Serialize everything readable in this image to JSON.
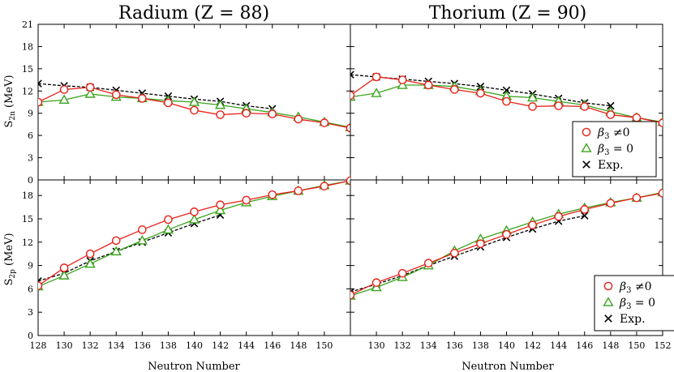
{
  "titles": {
    "radium": "Radium (Z = 88)",
    "thorium": "Thorium (Z = 90)"
  },
  "axes": {
    "xlabel": "Neutron Number",
    "ylabel_top_prefix": "S",
    "ylabel_top_sub": "2n",
    "ylabel_bottom_prefix": "S",
    "ylabel_bottom_sub": "2p",
    "ylabel_units": "(MeV)"
  },
  "legend": {
    "entries": [
      {
        "key": "beta3_nonzero",
        "symbol_main": "β",
        "symbol_sub": "3",
        "rel": "≠0",
        "marker": "circle"
      },
      {
        "key": "beta3_zero",
        "symbol_main": "β",
        "symbol_sub": "3",
        "rel": "= 0",
        "marker": "triangle"
      },
      {
        "key": "exp",
        "label": "Exp.",
        "marker": "cross"
      }
    ]
  },
  "colors": {
    "beta3_nonzero": "#e8211a",
    "beta3_zero": "#3aa41c",
    "exp": "#000000"
  },
  "chart_data": [
    {
      "id": "radium-s2n",
      "type": "line",
      "title": "Radium (Z = 88)",
      "xlabel": "",
      "ylabel": "S2n (MeV)",
      "xlim": [
        128,
        152
      ],
      "ylim": [
        0,
        21
      ],
      "x_ticks": [
        128,
        130,
        132,
        134,
        136,
        138,
        140,
        142,
        144,
        146,
        148,
        150
      ],
      "y_ticks": [
        0,
        3,
        6,
        9,
        12,
        15,
        18,
        21
      ],
      "show_x_tick_labels": false,
      "series": [
        {
          "name": "β3 ≠0",
          "key": "beta3_nonzero",
          "marker": "circle",
          "x": [
            128,
            130,
            132,
            134,
            136,
            138,
            140,
            142,
            144,
            146,
            148,
            150,
            152
          ],
          "values": [
            10.5,
            12.2,
            12.5,
            11.5,
            11.0,
            10.4,
            9.4,
            8.8,
            9.0,
            8.9,
            8.2,
            7.7,
            7.0
          ]
        },
        {
          "name": "β3 = 0",
          "key": "beta3_zero",
          "marker": "triangle",
          "x": [
            128,
            130,
            132,
            134,
            136,
            138,
            140,
            142,
            144,
            146,
            148,
            150,
            152
          ],
          "values": [
            10.5,
            10.8,
            11.6,
            11.2,
            11.0,
            10.7,
            10.5,
            10.1,
            9.6,
            9.1,
            8.5,
            7.8,
            7.1
          ]
        },
        {
          "name": "Exp.",
          "key": "exp",
          "marker": "cross",
          "x": [
            128,
            130,
            132,
            134,
            136,
            138,
            140,
            142,
            144,
            146
          ],
          "values": [
            13.0,
            12.7,
            12.5,
            12.1,
            11.7,
            11.3,
            10.9,
            10.6,
            10.0,
            9.6
          ]
        }
      ]
    },
    {
      "id": "thorium-s2n",
      "type": "line",
      "title": "Thorium (Z = 90)",
      "xlabel": "",
      "ylabel": "",
      "xlim": [
        128,
        152
      ],
      "ylim": [
        0,
        21
      ],
      "x_ticks": [
        130,
        132,
        134,
        136,
        138,
        140,
        142,
        144,
        146,
        148,
        150,
        152
      ],
      "y_ticks": [
        0,
        3,
        6,
        9,
        12,
        15,
        18,
        21
      ],
      "show_x_tick_labels": false,
      "legend": "lower-right",
      "series": [
        {
          "name": "β3 ≠0",
          "key": "beta3_nonzero",
          "marker": "circle",
          "x": [
            128,
            130,
            132,
            134,
            136,
            138,
            140,
            142,
            144,
            146,
            148,
            150,
            152
          ],
          "values": [
            11.4,
            13.9,
            13.5,
            12.8,
            12.2,
            11.7,
            10.6,
            9.9,
            10.0,
            9.9,
            8.8,
            8.4,
            7.7
          ]
        },
        {
          "name": "β3 = 0",
          "key": "beta3_zero",
          "marker": "triangle",
          "x": [
            128,
            130,
            132,
            134,
            136,
            138,
            140,
            142,
            144,
            146,
            148,
            150,
            152
          ],
          "values": [
            11.2,
            11.7,
            12.8,
            12.8,
            12.6,
            12.0,
            11.3,
            11.1,
            10.6,
            10.1,
            9.2,
            8.4,
            7.8
          ]
        },
        {
          "name": "Exp.",
          "key": "exp",
          "marker": "cross",
          "x": [
            128,
            130,
            132,
            134,
            136,
            138,
            140,
            142,
            144,
            146,
            148
          ],
          "values": [
            14.2,
            13.9,
            13.6,
            13.3,
            13.0,
            12.6,
            12.1,
            11.6,
            11.0,
            10.4,
            10.0
          ]
        }
      ]
    },
    {
      "id": "radium-s2p",
      "type": "line",
      "title": "",
      "xlabel": "Neutron Number",
      "ylabel": "S2p (MeV)",
      "xlim": [
        128,
        152
      ],
      "ylim": [
        0,
        20
      ],
      "x_ticks": [
        128,
        130,
        132,
        134,
        136,
        138,
        140,
        142,
        144,
        146,
        148,
        150
      ],
      "y_ticks": [
        0,
        3,
        6,
        9,
        12,
        15,
        18
      ],
      "show_x_tick_labels": true,
      "series": [
        {
          "name": "β3 ≠0",
          "key": "beta3_nonzero",
          "marker": "circle",
          "x": [
            128,
            130,
            132,
            134,
            136,
            138,
            140,
            142,
            144,
            146,
            148,
            150,
            152
          ],
          "values": [
            6.4,
            8.7,
            10.5,
            12.2,
            13.6,
            14.9,
            15.9,
            16.8,
            17.4,
            18.1,
            18.6,
            19.2,
            19.9
          ]
        },
        {
          "name": "β3 = 0",
          "key": "beta3_zero",
          "marker": "triangle",
          "x": [
            128,
            130,
            132,
            134,
            136,
            138,
            140,
            142,
            144,
            146,
            148,
            150,
            152
          ],
          "values": [
            6.3,
            7.7,
            9.2,
            10.8,
            12.2,
            13.6,
            14.9,
            16.1,
            17.1,
            17.9,
            18.6,
            19.3,
            19.9
          ]
        },
        {
          "name": "Exp.",
          "key": "exp",
          "marker": "cross",
          "x": [
            128,
            130,
            132,
            134,
            136,
            138,
            140,
            142
          ],
          "values": [
            7.0,
            8.0,
            9.6,
            10.8,
            12.0,
            13.2,
            14.4,
            15.5
          ]
        }
      ]
    },
    {
      "id": "thorium-s2p",
      "type": "line",
      "title": "",
      "xlabel": "Neutron Number",
      "ylabel": "",
      "xlim": [
        128,
        152
      ],
      "ylim": [
        0,
        20
      ],
      "x_ticks": [
        130,
        132,
        134,
        136,
        138,
        140,
        142,
        144,
        146,
        148,
        150,
        152
      ],
      "y_ticks": [
        0,
        3,
        6,
        9,
        12,
        15,
        18
      ],
      "show_x_tick_labels": true,
      "legend": "lower-right",
      "series": [
        {
          "name": "β3 ≠0",
          "key": "beta3_nonzero",
          "marker": "circle",
          "x": [
            128,
            130,
            132,
            134,
            136,
            138,
            140,
            142,
            144,
            146,
            148,
            150,
            152
          ],
          "values": [
            5.2,
            6.8,
            8.0,
            9.3,
            10.6,
            11.8,
            13.0,
            14.2,
            15.3,
            16.2,
            17.0,
            17.7,
            18.3
          ]
        },
        {
          "name": "β3 = 0",
          "key": "beta3_zero",
          "marker": "triangle",
          "x": [
            128,
            130,
            132,
            134,
            136,
            138,
            140,
            142,
            144,
            146,
            148,
            150,
            152
          ],
          "values": [
            5.1,
            6.2,
            7.5,
            9.0,
            10.9,
            12.4,
            13.5,
            14.6,
            15.6,
            16.4,
            17.1,
            17.7,
            18.4
          ]
        },
        {
          "name": "Exp.",
          "key": "exp",
          "marker": "cross",
          "x": [
            128,
            130,
            132,
            134,
            136,
            138,
            140,
            142,
            144,
            146
          ],
          "values": [
            5.6,
            6.6,
            7.7,
            9.0,
            10.2,
            11.4,
            12.6,
            13.7,
            14.7,
            15.4
          ]
        }
      ]
    }
  ]
}
